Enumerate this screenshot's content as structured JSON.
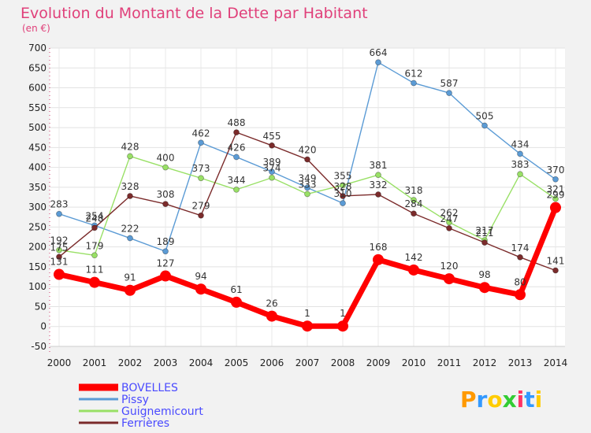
{
  "chart_data": {
    "type": "line",
    "title": "Evolution du Montant de la Dette par Habitant",
    "subtitle": "(en €)",
    "x": [
      "2000",
      "2001",
      "2002",
      "2003",
      "2004",
      "2005",
      "2006",
      "2007",
      "2008",
      "2009",
      "2010",
      "2011",
      "2012",
      "2013",
      "2014"
    ],
    "ylim": [
      -50,
      700
    ],
    "yticks": [
      -50,
      0,
      50,
      100,
      150,
      200,
      250,
      300,
      350,
      400,
      450,
      500,
      550,
      600,
      650,
      700
    ],
    "grid": true,
    "legend": "bottom-left",
    "series": [
      {
        "name": "BOVELLES",
        "color": "#ff0000",
        "values": [
          131,
          111,
          91,
          127,
          94,
          61,
          26,
          1,
          1,
          168,
          142,
          120,
          98,
          80,
          299
        ]
      },
      {
        "name": "Pissy",
        "color": "#5b9bd5",
        "values": [
          283,
          254,
          222,
          189,
          462,
          426,
          389,
          349,
          310,
          664,
          612,
          587,
          505,
          434,
          370
        ]
      },
      {
        "name": "Guignemicourt",
        "color": "#99e066",
        "values": [
          192,
          179,
          428,
          400,
          373,
          344,
          374,
          333,
          355,
          381,
          318,
          262,
          217,
          383,
          321
        ]
      },
      {
        "name": "Ferrières",
        "color": "#7b2b2b",
        "values": [
          175,
          248,
          328,
          308,
          279,
          488,
          455,
          420,
          328,
          332,
          284,
          247,
          211,
          174,
          141
        ]
      }
    ]
  },
  "brand": {
    "text": "Proxiti",
    "letters": [
      "P",
      "r",
      "o",
      "x",
      "i",
      "t",
      "i"
    ]
  }
}
